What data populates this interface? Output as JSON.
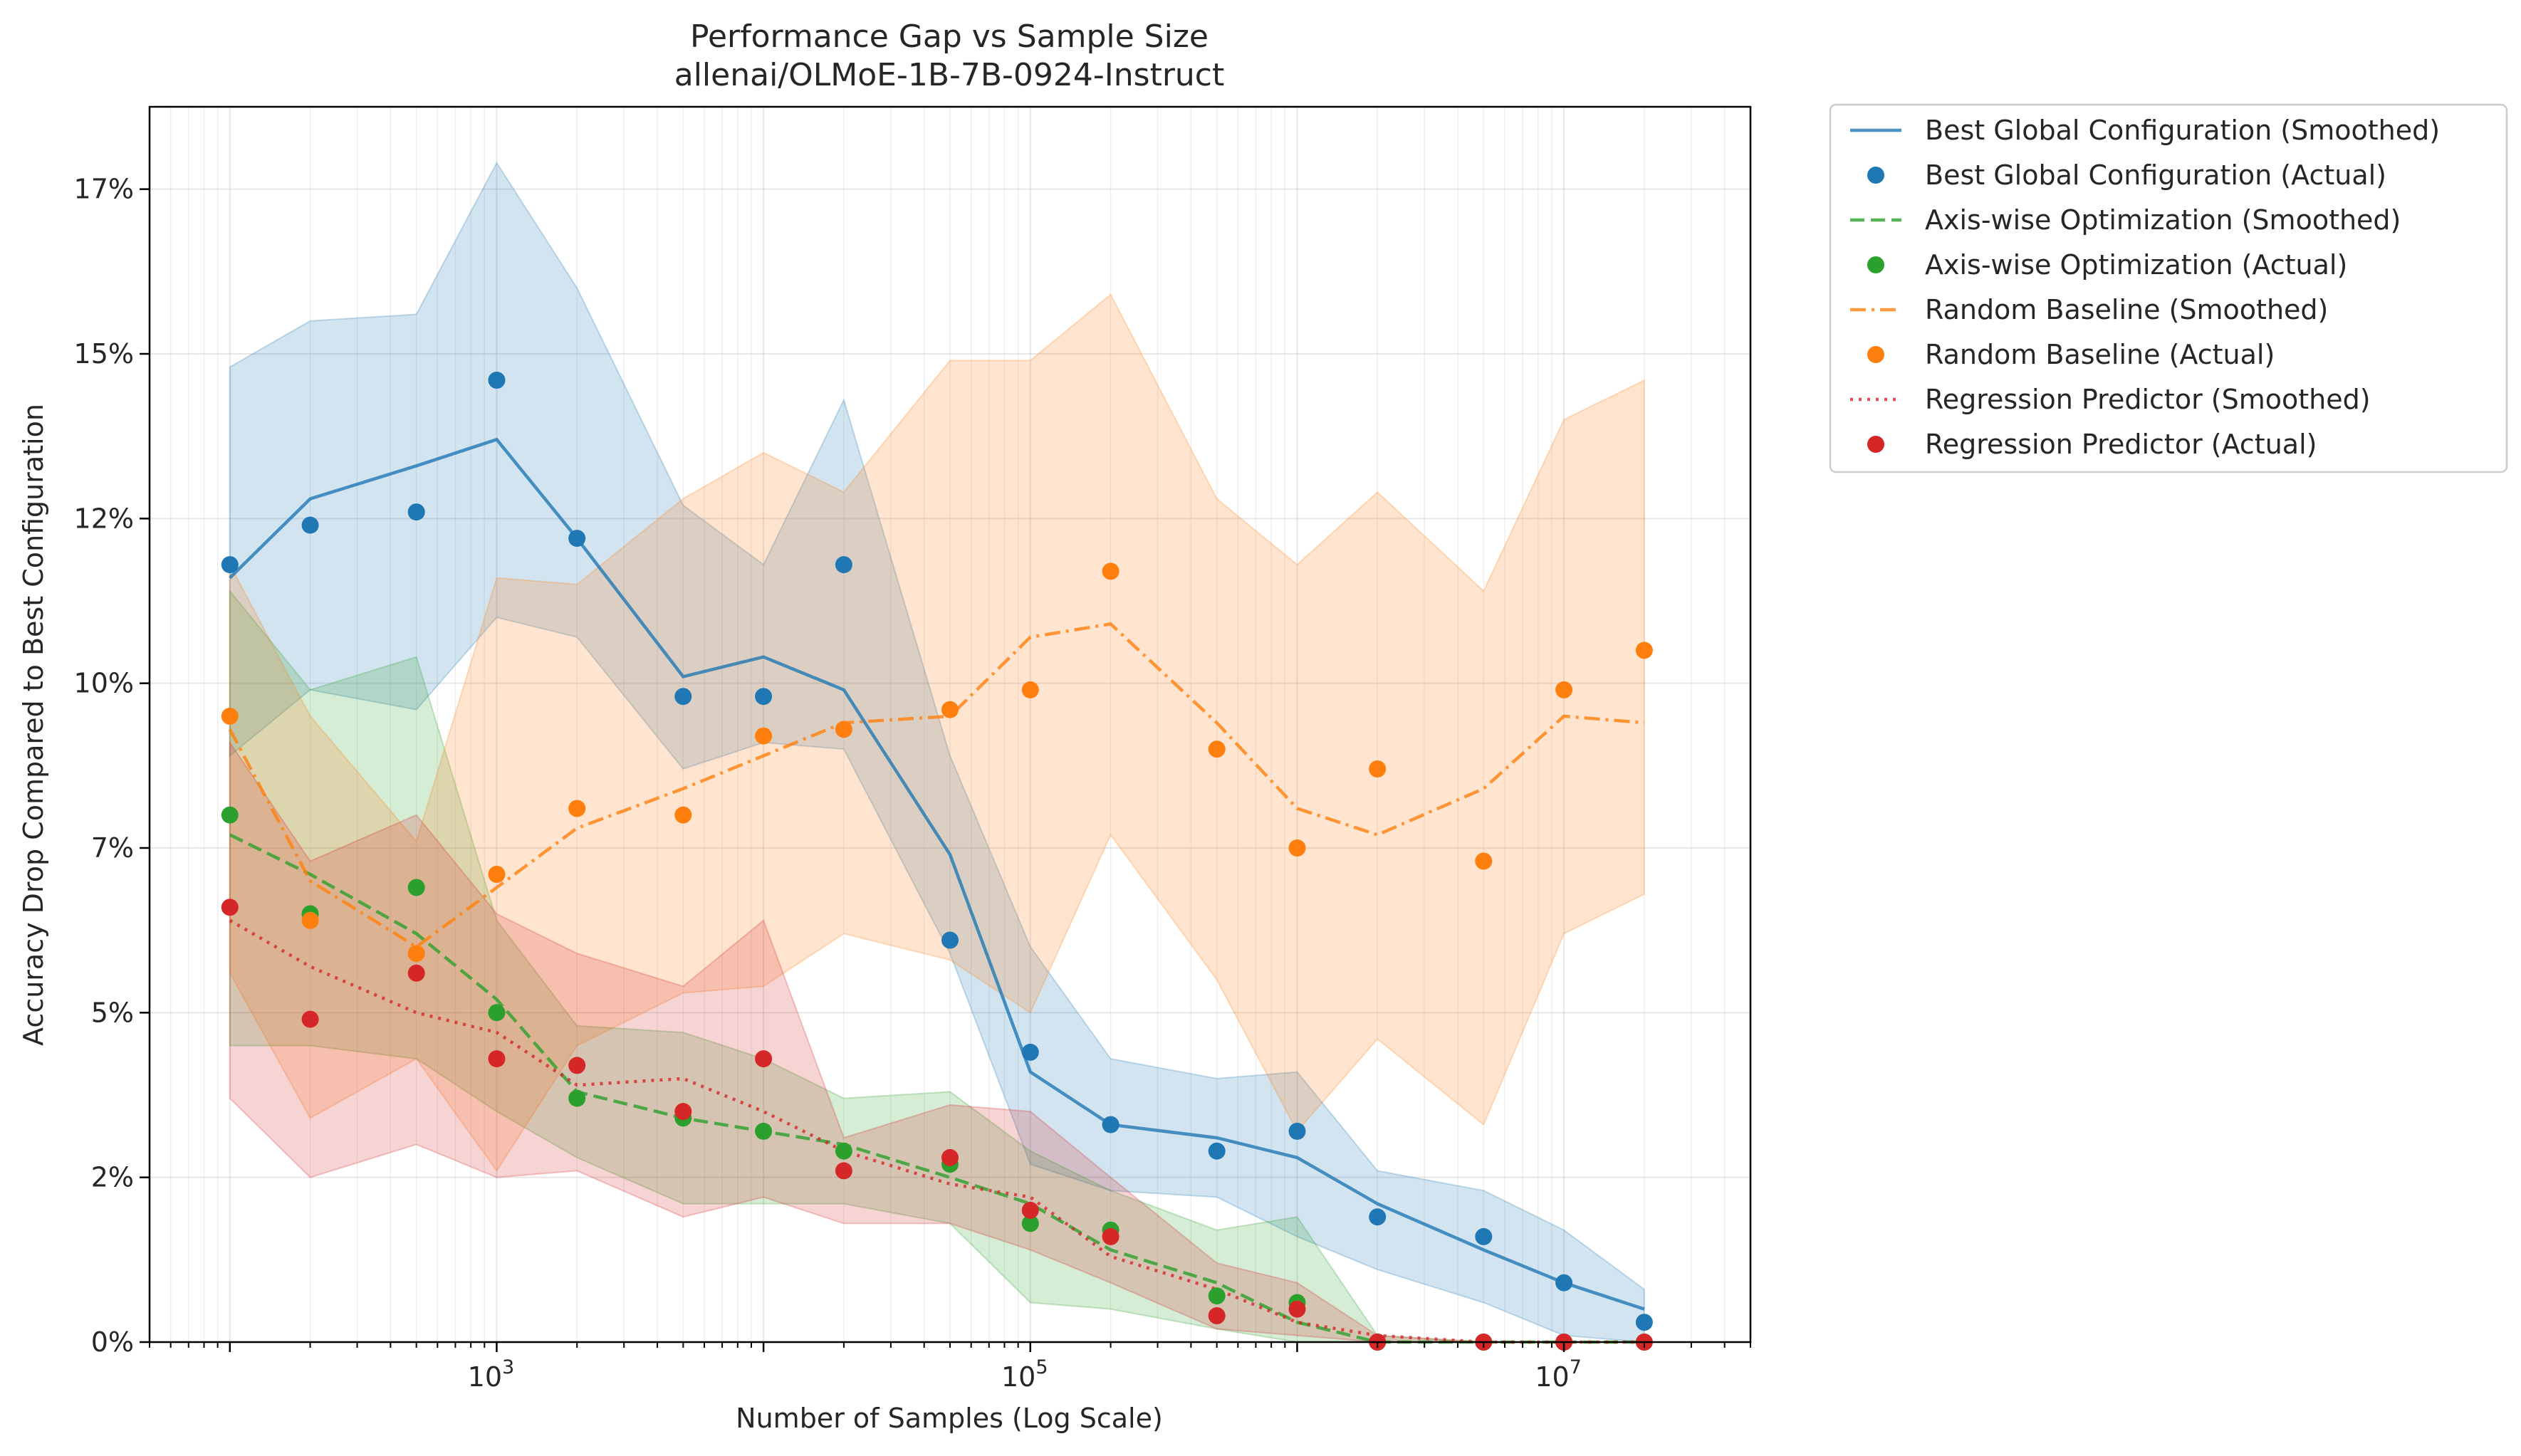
{
  "chart_data": {
    "type": "line",
    "title": "Performance Gap vs Sample Size",
    "subtitle": "allenai/OLMoE-1B-7B-0924-Instruct",
    "xlabel": "Number of Samples (Log Scale)",
    "ylabel": "Accuracy Drop Compared to Best Configuration",
    "xscale": "log",
    "xlim": [
      50,
      50000000
    ],
    "ylim": [
      0,
      0.1875
    ],
    "x_ticks": [
      {
        "value": 1000,
        "base": "10",
        "exp": "3"
      },
      {
        "value": 100000,
        "base": "10",
        "exp": "5"
      },
      {
        "value": 10000000,
        "base": "10",
        "exp": "7"
      }
    ],
    "y_ticks": [
      {
        "value": 0.0,
        "label": "0%"
      },
      {
        "value": 0.025,
        "label": "2%"
      },
      {
        "value": 0.05,
        "label": "5%"
      },
      {
        "value": 0.075,
        "label": "7%"
      },
      {
        "value": 0.1,
        "label": "10%"
      },
      {
        "value": 0.125,
        "label": "12%"
      },
      {
        "value": 0.15,
        "label": "15%"
      },
      {
        "value": 0.175,
        "label": "17%"
      }
    ],
    "grid": true,
    "legend_position": "outside-right-top",
    "series": [
      {
        "name": "Best Global Configuration",
        "smoothed_label": "Best Global Configuration (Smoothed)",
        "actual_label": "Best Global Configuration (Actual)",
        "color": "#1f77b4",
        "line_style": "solid",
        "x": [
          100,
          200,
          500,
          1000,
          2000,
          5000,
          10000,
          20000,
          50000,
          100000,
          200000,
          500000,
          1000000,
          2000000,
          5000000,
          10000000,
          20000000
        ],
        "actual": [
          0.118,
          0.124,
          0.126,
          0.146,
          0.122,
          0.098,
          0.098,
          0.118,
          0.061,
          0.044,
          0.033,
          0.029,
          0.032,
          0.019,
          0.016,
          0.009,
          0.003
        ],
        "smoothed": [
          0.116,
          0.128,
          0.133,
          0.137,
          0.122,
          0.101,
          0.104,
          0.099,
          0.074,
          0.041,
          0.033,
          0.031,
          0.028,
          0.021,
          0.014,
          0.009,
          0.005
        ],
        "band_upper": [
          0.148,
          0.155,
          0.156,
          0.179,
          0.16,
          0.127,
          0.118,
          0.143,
          0.089,
          0.06,
          0.043,
          0.04,
          0.041,
          0.026,
          0.023,
          0.017,
          0.008
        ],
        "band_lower": [
          0.089,
          0.099,
          0.096,
          0.11,
          0.107,
          0.087,
          0.091,
          0.09,
          0.059,
          0.027,
          0.023,
          0.022,
          0.016,
          0.011,
          0.006,
          0.001,
          0.0
        ]
      },
      {
        "name": "Axis-wise Optimization",
        "smoothed_label": "Axis-wise Optimization (Smoothed)",
        "actual_label": "Axis-wise Optimization (Actual)",
        "color": "#2ca02c",
        "line_style": "dashed",
        "x": [
          100,
          200,
          500,
          1000,
          2000,
          5000,
          10000,
          20000,
          50000,
          100000,
          200000,
          500000,
          1000000,
          2000000,
          5000000,
          10000000,
          20000000
        ],
        "actual": [
          0.08,
          0.065,
          0.069,
          0.05,
          0.037,
          0.034,
          0.032,
          0.029,
          0.027,
          0.018,
          0.017,
          0.007,
          0.006,
          0.0,
          0.0,
          0.0,
          0.0
        ],
        "smoothed": [
          0.077,
          0.071,
          0.062,
          0.052,
          0.038,
          0.034,
          0.032,
          0.03,
          0.025,
          0.021,
          0.014,
          0.009,
          0.003,
          0.0,
          0.0,
          0.0,
          0.0
        ],
        "band_upper": [
          0.114,
          0.099,
          0.104,
          0.064,
          0.048,
          0.047,
          0.043,
          0.037,
          0.038,
          0.029,
          0.023,
          0.017,
          0.019,
          0.001,
          0.0,
          0.0,
          0.0
        ],
        "band_lower": [
          0.045,
          0.045,
          0.043,
          0.035,
          0.028,
          0.021,
          0.021,
          0.021,
          0.018,
          0.006,
          0.005,
          0.002,
          0.0,
          0.0,
          0.0,
          0.0,
          0.0
        ]
      },
      {
        "name": "Random Baseline",
        "smoothed_label": "Random Baseline (Smoothed)",
        "actual_label": "Random Baseline (Actual)",
        "color": "#ff7f0e",
        "line_style": "dashdot",
        "x": [
          100,
          200,
          500,
          1000,
          2000,
          5000,
          10000,
          20000,
          50000,
          100000,
          200000,
          500000,
          1000000,
          2000000,
          5000000,
          10000000,
          20000000
        ],
        "actual": [
          0.095,
          0.064,
          0.059,
          0.071,
          0.081,
          0.08,
          0.092,
          0.093,
          0.096,
          0.099,
          0.117,
          0.09,
          0.075,
          0.087,
          0.073,
          0.099,
          0.105
        ],
        "smoothed": [
          0.093,
          0.07,
          0.06,
          0.069,
          0.078,
          0.084,
          0.089,
          0.094,
          0.095,
          0.107,
          0.109,
          0.094,
          0.081,
          0.077,
          0.084,
          0.095,
          0.094
        ],
        "band_upper": [
          0.118,
          0.095,
          0.076,
          0.116,
          0.115,
          0.128,
          0.135,
          0.129,
          0.149,
          0.149,
          0.159,
          0.128,
          0.118,
          0.129,
          0.114,
          0.14,
          0.146
        ],
        "band_lower": [
          0.056,
          0.034,
          0.043,
          0.026,
          0.045,
          0.053,
          0.054,
          0.062,
          0.058,
          0.05,
          0.077,
          0.055,
          0.032,
          0.046,
          0.033,
          0.062,
          0.068
        ]
      },
      {
        "name": "Regression Predictor",
        "smoothed_label": "Regression Predictor (Smoothed)",
        "actual_label": "Regression Predictor (Actual)",
        "color": "#d62728",
        "line_style": "dotted",
        "x": [
          100,
          200,
          500,
          1000,
          2000,
          5000,
          10000,
          20000,
          50000,
          100000,
          200000,
          500000,
          1000000,
          2000000,
          5000000,
          10000000,
          20000000
        ],
        "actual": [
          0.066,
          0.049,
          0.056,
          0.043,
          0.042,
          0.035,
          0.043,
          0.026,
          0.028,
          0.02,
          0.016,
          0.004,
          0.005,
          0.0,
          0.0,
          0.0,
          0.0
        ],
        "smoothed": [
          0.064,
          0.057,
          0.05,
          0.047,
          0.039,
          0.04,
          0.035,
          0.029,
          0.024,
          0.022,
          0.013,
          0.008,
          0.003,
          0.001,
          0.0,
          0.0,
          0.0
        ],
        "band_upper": [
          0.091,
          0.073,
          0.08,
          0.065,
          0.059,
          0.054,
          0.064,
          0.031,
          0.036,
          0.035,
          0.025,
          0.012,
          0.009,
          0.001,
          0.0,
          0.0,
          0.0
        ],
        "band_lower": [
          0.037,
          0.025,
          0.03,
          0.025,
          0.026,
          0.019,
          0.022,
          0.018,
          0.018,
          0.014,
          0.009,
          0.002,
          0.001,
          0.0,
          0.0,
          0.0,
          0.0
        ]
      }
    ]
  }
}
